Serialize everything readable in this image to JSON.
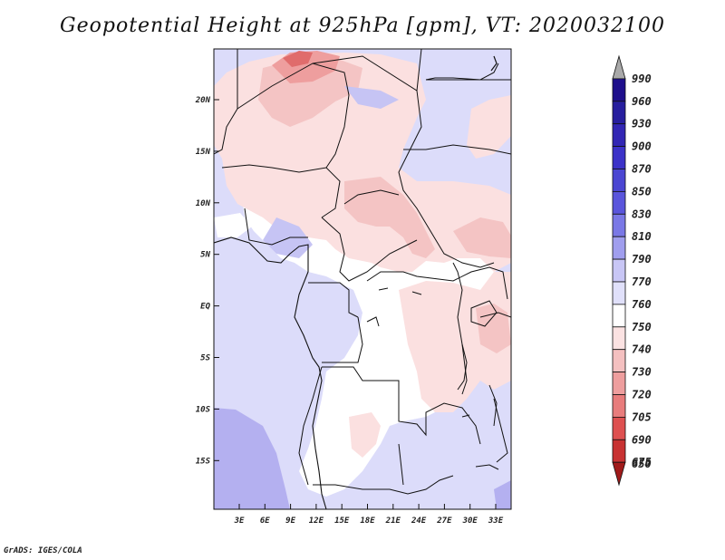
{
  "title": "Geopotential Height at 925hPa [gpm], VT: 2020032100",
  "footer": "GrADS: IGES/COLA",
  "map": {
    "lat_labels": [
      "20N",
      "15N",
      "10N",
      "5N",
      "EQ",
      "5S",
      "10S",
      "15S"
    ],
    "lon_labels": [
      "3E",
      "6E",
      "9E",
      "12E",
      "15E",
      "18E",
      "21E",
      "24E",
      "27E",
      "30E",
      "33E"
    ]
  },
  "colorbar": {
    "levels": [
      "990",
      "960",
      "930",
      "900",
      "870",
      "850",
      "830",
      "810",
      "790",
      "770",
      "760",
      "750",
      "740",
      "730",
      "720",
      "705",
      "690",
      "675",
      "650"
    ],
    "colors": [
      "#a9a9a9",
      "#1e0f8c",
      "#271e9e",
      "#3226b4",
      "#3c32c8",
      "#4b46d2",
      "#5a55dc",
      "#7a78e6",
      "#a09eee",
      "#c8c6f5",
      "#e0e0fa",
      "#ffffff",
      "#fbe2e2",
      "#f4c0c0",
      "#ee9e9e",
      "#e87c7c",
      "#de5050",
      "#c83232",
      "#a01a1a"
    ]
  },
  "colors": {
    "blue_light": "#dcdcfa",
    "blue_mid": "#c6c4f4",
    "blue_deep": "#b4b0f0",
    "pink_light": "#fbe0e0",
    "pink_mid": "#f4c4c4",
    "pink_deep": "#ee9e9e",
    "red": "#e06c6c",
    "land_white": "#ffffff"
  }
}
